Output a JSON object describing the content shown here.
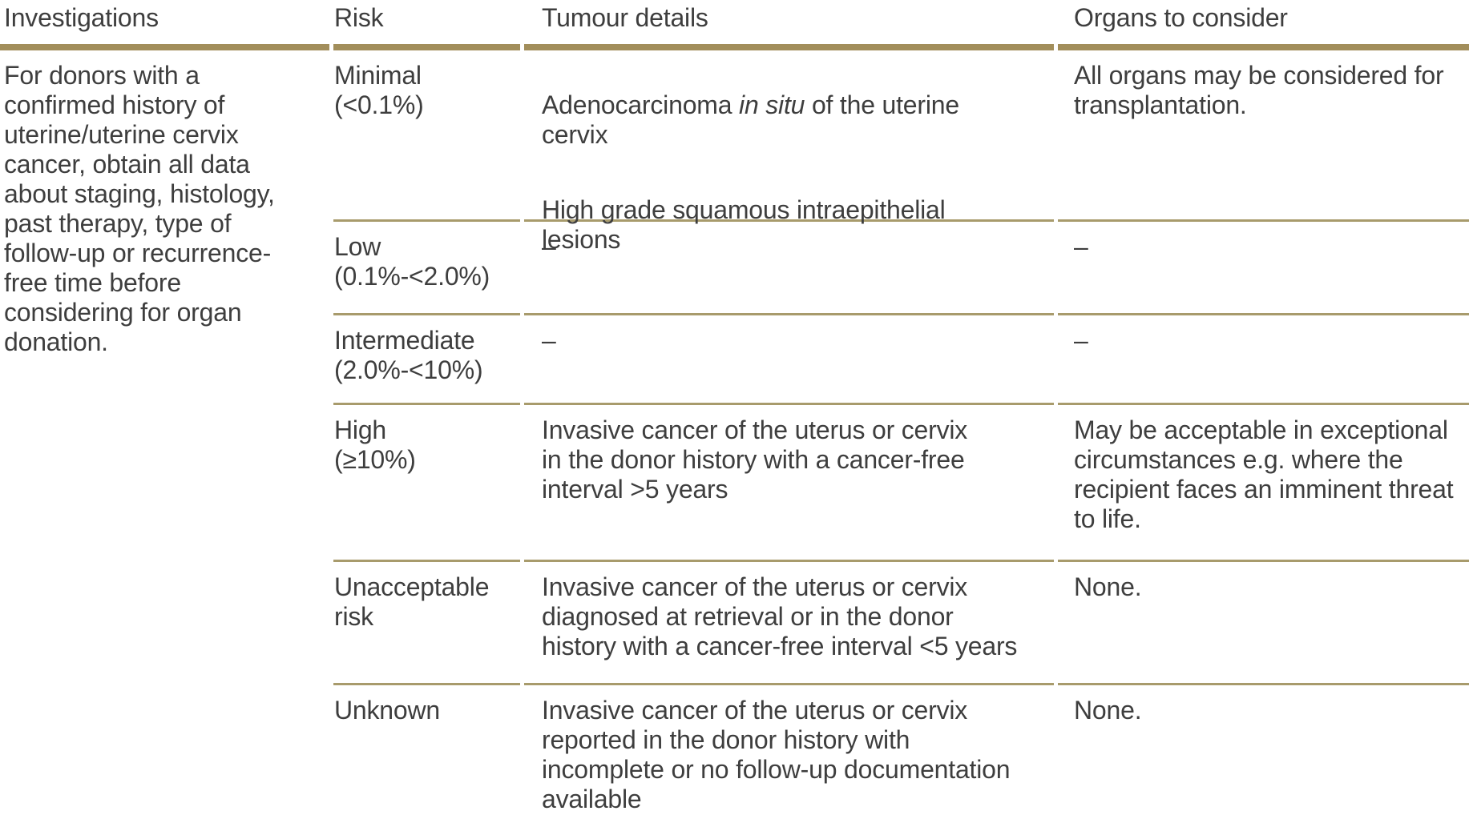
{
  "table": {
    "colors": {
      "header_rule": "#a28e5b",
      "row_rule": "#a89b6c",
      "text": "#3e3e3e"
    },
    "columns": [
      {
        "label": "Investigations"
      },
      {
        "label": "Risk"
      },
      {
        "label": "Tumour details"
      },
      {
        "label": "Organs to consider"
      }
    ],
    "investigations_note": "For donors with a\nconfirmed history of\nuterine/uterine cervix\ncancer, obtain all data\nabout staging, histology,\npast therapy, type of\nfollow-up or recurrence-\nfree time before\nconsidering for organ\ndonation.",
    "rows": [
      {
        "risk": "Minimal\n(<0.1%)",
        "tumour_para1_before": "Adenocarcinoma ",
        "tumour_para1_italic": "in situ",
        "tumour_para1_after": " of the uterine\ncervix",
        "tumour_para2": "High grade squamous intraepithelial\nlesions",
        "organs": "All organs may be considered for\ntransplantation."
      },
      {
        "risk": "Low\n(0.1%-<2.0%)",
        "tumour": "–",
        "organs": "–"
      },
      {
        "risk": "Intermediate\n(2.0%-<10%)",
        "tumour": "–",
        "organs": "–"
      },
      {
        "risk": "High\n(≥10%)",
        "tumour": "Invasive cancer of the uterus or cervix\nin the donor history with a cancer-free\ninterval >5 years",
        "organs": "May be acceptable in exceptional\ncircumstances e.g. where the\nrecipient faces an imminent threat\nto life."
      },
      {
        "risk": "Unacceptable\nrisk",
        "tumour": "Invasive cancer of the uterus or cervix\ndiagnosed at retrieval or in the donor\nhistory with a cancer-free interval <5 years",
        "organs": "None."
      },
      {
        "risk": "Unknown",
        "tumour": "Invasive cancer of the uterus or cervix\nreported in the donor history with\nincomplete or no follow-up documentation\navailable",
        "organs": "None."
      }
    ]
  }
}
